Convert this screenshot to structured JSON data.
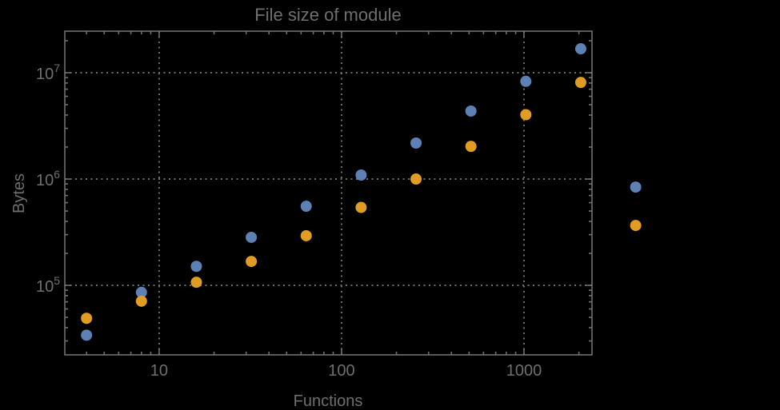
{
  "colors": {
    "background": "#000000",
    "frame": "#707070",
    "grid": "#6e6e6e",
    "text": "#6f6f6f",
    "series_blue": "#5E81B5",
    "series_orange": "#E19C24"
  },
  "chart_data": {
    "type": "scatter",
    "title": "File size of module",
    "xlabel": "Functions",
    "ylabel": "Bytes",
    "xscale": "log",
    "yscale": "log",
    "xlim": [
      3.04,
      2360
    ],
    "ylim": [
      22200,
      24600000
    ],
    "grid": "dotted gridlines at decade positions, frame with inward ticks on all four sides",
    "legend_position": "none",
    "clipping": "points at x=4096 are drawn outside the right edge of the frame",
    "x": [
      4,
      8,
      16,
      32,
      64,
      128,
      256,
      512,
      1024,
      2048,
      4096
    ],
    "series": [
      {
        "name": "series-1-blue",
        "color": "#5E81B5",
        "values": [
          34000,
          86000,
          151000,
          283000,
          555000,
          1090000,
          2180000,
          4360000,
          8300000,
          16800000,
          840000
        ]
      },
      {
        "name": "series-2-orange",
        "color": "#E19C24",
        "values": [
          49000,
          71000,
          107000,
          168000,
          293000,
          541000,
          1000000,
          2030000,
          4030000,
          8100000,
          366000
        ]
      }
    ],
    "xticks": [
      {
        "label": "10",
        "value": 10
      },
      {
        "label": "100",
        "value": 100
      },
      {
        "label": "1000",
        "value": 1000
      }
    ],
    "yticks": [
      {
        "base": "10",
        "exp": "5",
        "value": 100000
      },
      {
        "base": "10",
        "exp": "6",
        "value": 1000000
      },
      {
        "base": "10",
        "exp": "7",
        "value": 10000000
      }
    ]
  }
}
